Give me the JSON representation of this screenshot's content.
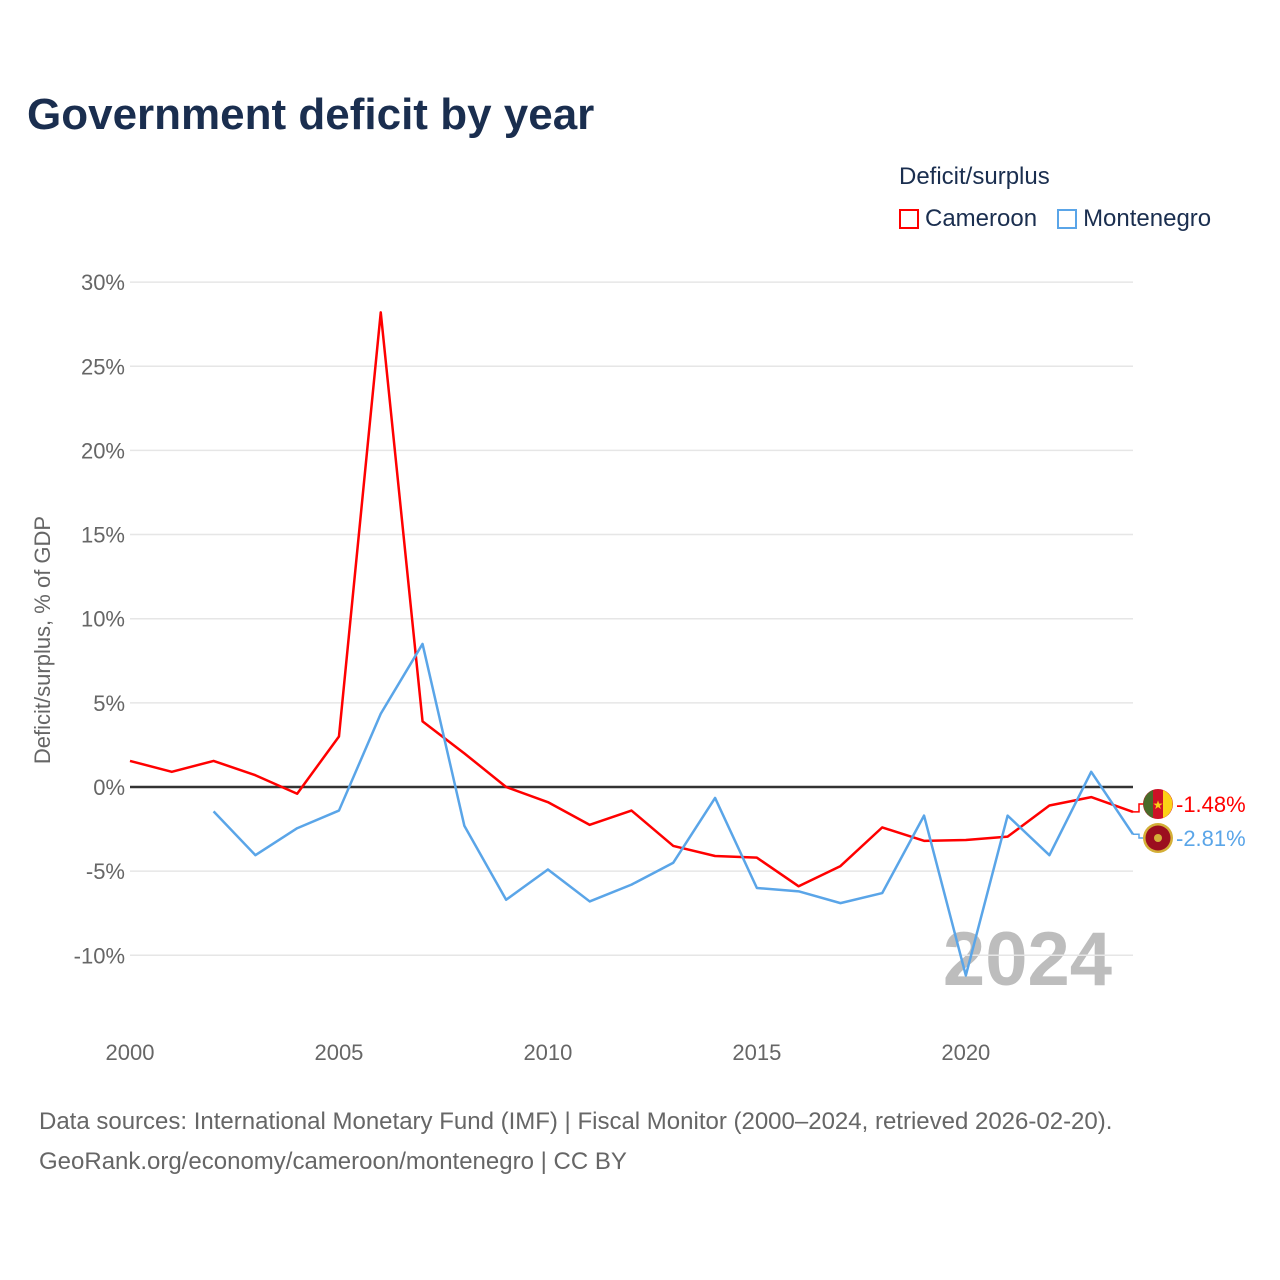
{
  "chart_data": {
    "type": "line",
    "title": "Government deficit by year",
    "xlabel": "",
    "ylabel": "Deficit/surplus, % of GDP",
    "xlim": [
      2000,
      2024
    ],
    "ylim": [
      -13,
      31
    ],
    "yticks": [
      30,
      25,
      20,
      15,
      10,
      5,
      0,
      -5,
      -10
    ],
    "ytick_labels": [
      "30%",
      "25%",
      "20%",
      "15%",
      "10%",
      "5%",
      "0%",
      "-5%",
      "-10%"
    ],
    "xticks": [
      2000,
      2005,
      2010,
      2015,
      2020
    ],
    "xtick_labels": [
      "2000",
      "2005",
      "2010",
      "2015",
      "2020"
    ],
    "grid": true,
    "legend_title": "Deficit/surplus",
    "legend_position": "top-right",
    "year_watermark": "2024",
    "series": [
      {
        "name": "Cameroon",
        "color": "#ff0000",
        "end_label": "-1.48%",
        "x": [
          2000,
          2001,
          2002,
          2003,
          2004,
          2005,
          2006,
          2007,
          2008,
          2009,
          2010,
          2011,
          2012,
          2013,
          2014,
          2015,
          2016,
          2017,
          2018,
          2019,
          2020,
          2021,
          2022,
          2023,
          2024
        ],
        "values": [
          1.55,
          0.9,
          1.55,
          0.7,
          -0.4,
          3.0,
          28.2,
          3.9,
          2.0,
          0.0,
          -0.9,
          -2.25,
          -1.4,
          -3.5,
          -4.1,
          -4.2,
          -5.9,
          -4.7,
          -2.4,
          -3.2,
          -3.15,
          -2.95,
          -1.1,
          -0.6,
          -1.48
        ]
      },
      {
        "name": "Montenegro",
        "color": "#5aa5e8",
        "end_label": "-2.81%",
        "x": [
          2002,
          2003,
          2004,
          2005,
          2006,
          2007,
          2008,
          2009,
          2010,
          2011,
          2012,
          2013,
          2014,
          2015,
          2016,
          2017,
          2018,
          2019,
          2020,
          2021,
          2022,
          2023,
          2024
        ],
        "values": [
          -1.45,
          -4.05,
          -2.45,
          -1.4,
          4.35,
          8.5,
          -2.3,
          -6.7,
          -4.9,
          -6.8,
          -5.8,
          -4.5,
          -0.65,
          -6.0,
          -6.2,
          -6.9,
          -6.3,
          -1.7,
          -11.2,
          -1.7,
          -4.05,
          0.9,
          -2.81
        ]
      }
    ]
  },
  "footer": {
    "line1": "Data sources: International Monetary Fund (IMF) | Fiscal Monitor (2000–2024, retrieved 2026-02-20).",
    "line2": "GeoRank.org/economy/cameroon/montenegro | CC BY"
  }
}
